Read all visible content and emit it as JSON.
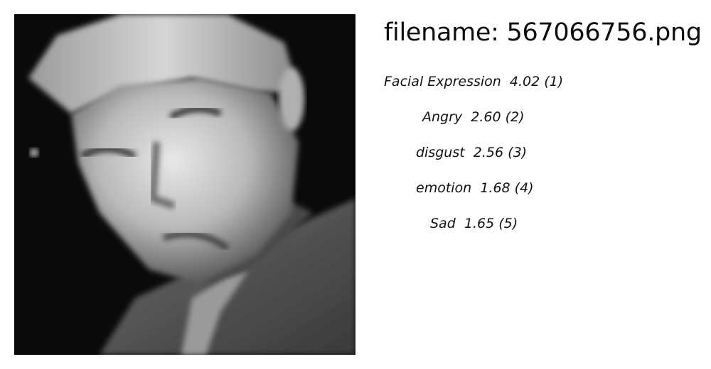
{
  "header": {
    "filename_prefix": "filename: ",
    "filename": "567066756.png"
  },
  "labels": [
    {
      "name": "Facial Expression",
      "score": "4.02",
      "rank": "(1)"
    },
    {
      "name": "Angry",
      "score": "2.60",
      "rank": "(2)"
    },
    {
      "name": "disgust",
      "score": "2.56",
      "rank": "(3)"
    },
    {
      "name": "emotion",
      "score": "1.68",
      "rank": "(4)"
    },
    {
      "name": "Sad",
      "score": "1.65",
      "rank": "(5)"
    }
  ],
  "image": {
    "description_icon": "grayscale-face-photo"
  }
}
